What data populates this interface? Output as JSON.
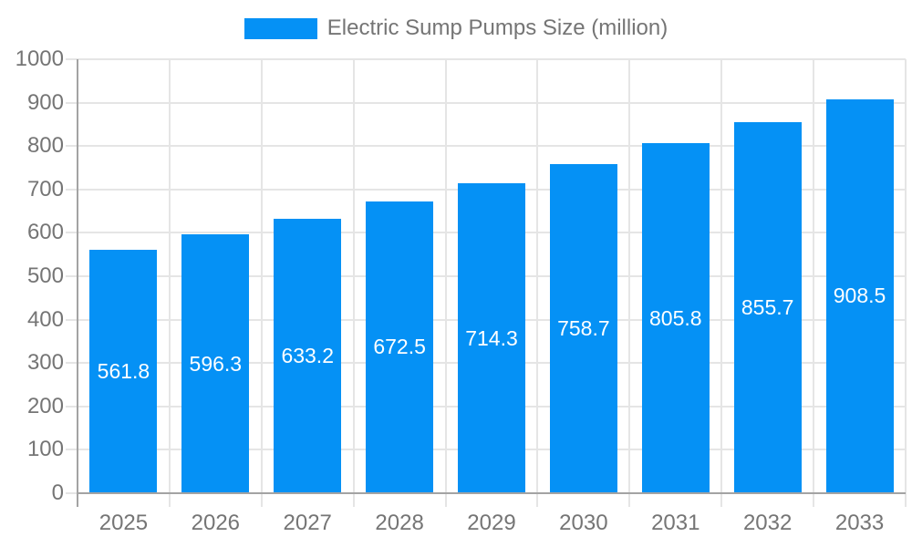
{
  "chart_data": {
    "type": "bar",
    "title": "Electric Sump Pumps Size (million)",
    "categories": [
      "2025",
      "2026",
      "2027",
      "2028",
      "2029",
      "2030",
      "2031",
      "2032",
      "2033"
    ],
    "series": [
      {
        "name": "Electric Sump Pumps Size (million)",
        "values": [
          561.8,
          596.3,
          633.2,
          672.5,
          714.3,
          758.7,
          805.8,
          855.7,
          908.5
        ]
      }
    ],
    "xlabel": "",
    "ylabel": "",
    "ylim": [
      0,
      1000
    ],
    "y_tick_step": 100,
    "grid": true,
    "legend_position": "top",
    "value_label_position": "inside-center",
    "value_label_decimals": 1,
    "colors": {
      "bar": "#0591f5",
      "value_label": "#ffffff",
      "axis_text": "#757575",
      "grid_line": "#e5e5e5",
      "axis_line": "#a3a3a3",
      "background": "#ffffff"
    }
  }
}
